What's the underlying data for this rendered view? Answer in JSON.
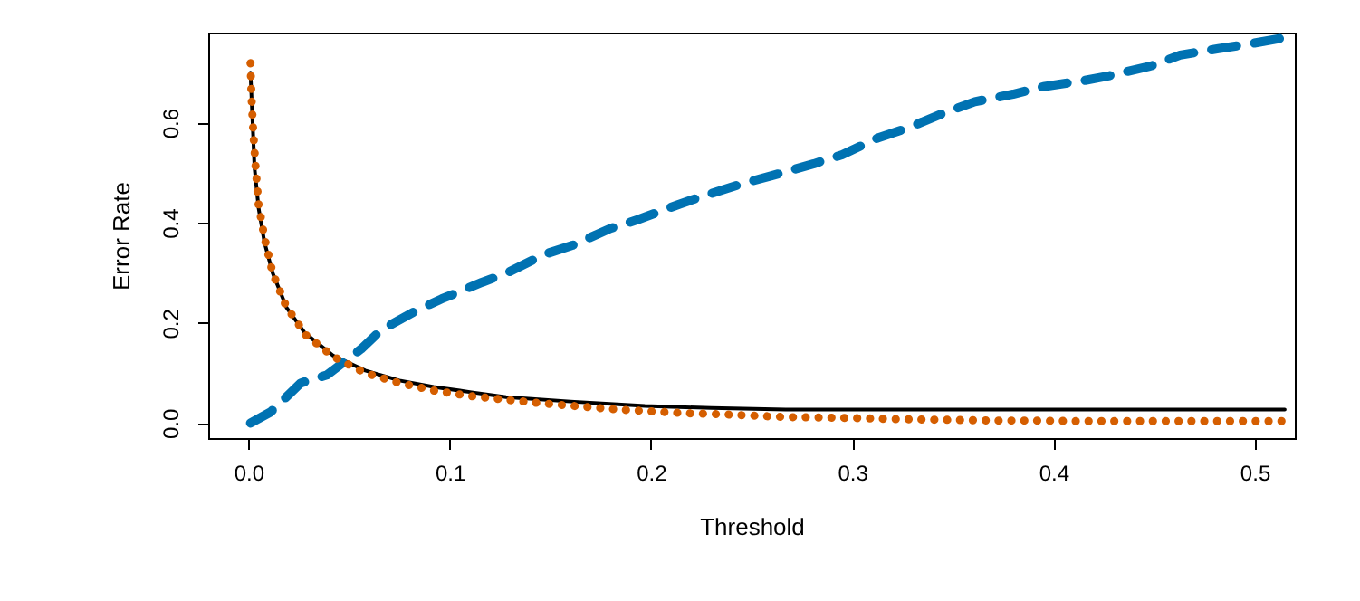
{
  "chart_data": {
    "type": "line",
    "xlabel": "Threshold",
    "ylabel": "Error Rate",
    "xlim": [
      -0.02,
      0.52
    ],
    "ylim": [
      -0.03,
      0.78
    ],
    "xticks": [
      {
        "value": 0,
        "label": "0.0"
      },
      0.1,
      0.2,
      0.3,
      0.4,
      0.5
    ],
    "yticks": [
      {
        "value": 0,
        "label": "0.0"
      },
      {
        "value": 0.2,
        "label": "0.2"
      },
      {
        "value": 0.4,
        "label": "0.4"
      },
      {
        "value": 0.6,
        "label": "0.6"
      }
    ],
    "grid": false,
    "series": [
      {
        "color": "#000000",
        "line_style": "solid",
        "x": [
          0.001,
          0.003,
          0.005,
          0.008,
          0.012,
          0.019,
          0.028,
          0.042,
          0.058,
          0.075,
          0.092,
          0.11,
          0.128,
          0.16,
          0.197,
          0.23,
          0.267,
          0.515
        ],
        "values": [
          0.7,
          0.51,
          0.43,
          0.36,
          0.3,
          0.23,
          0.18,
          0.135,
          0.105,
          0.085,
          0.072,
          0.062,
          0.052,
          0.043,
          0.034,
          0.03,
          0.027,
          0.027
        ]
      },
      {
        "color": "#0072b2",
        "line_style": "dashed",
        "x": [
          0.001,
          0.011,
          0.026,
          0.039,
          0.056,
          0.066,
          0.083,
          0.096,
          0.116,
          0.128,
          0.147,
          0.161,
          0.18,
          0.194,
          0.214,
          0.227,
          0.247,
          0.26,
          0.281,
          0.295,
          0.313,
          0.328,
          0.346,
          0.361,
          0.38,
          0.395,
          0.415,
          0.428,
          0.449,
          0.463,
          0.482,
          0.497,
          0.515
        ],
        "values": [
          0.0,
          0.022,
          0.08,
          0.096,
          0.148,
          0.186,
          0.224,
          0.248,
          0.281,
          0.299,
          0.337,
          0.355,
          0.389,
          0.407,
          0.437,
          0.455,
          0.48,
          0.494,
          0.518,
          0.536,
          0.57,
          0.59,
          0.62,
          0.642,
          0.657,
          0.672,
          0.684,
          0.694,
          0.714,
          0.735,
          0.748,
          0.757,
          0.77
        ]
      },
      {
        "color": "#d55e00",
        "line_style": "dotted",
        "x": [
          0.001,
          0.0015,
          0.0024,
          0.0036,
          0.005,
          0.008,
          0.012,
          0.0186,
          0.0285,
          0.042,
          0.058,
          0.075,
          0.092,
          0.11,
          0.127,
          0.144,
          0.162,
          0.18,
          0.197,
          0.215,
          0.232,
          0.25,
          0.267,
          0.285,
          0.302,
          0.32,
          0.338,
          0.355,
          0.373,
          0.391,
          0.408,
          0.426,
          0.444,
          0.461,
          0.479,
          0.496,
          0.514
        ],
        "values": [
          0.719,
          0.651,
          0.58,
          0.508,
          0.437,
          0.369,
          0.3,
          0.234,
          0.176,
          0.133,
          0.1,
          0.08,
          0.065,
          0.054,
          0.047,
          0.04,
          0.034,
          0.028,
          0.024,
          0.02,
          0.018,
          0.015,
          0.012,
          0.011,
          0.01,
          0.008,
          0.007,
          0.006,
          0.005,
          0.005,
          0.004,
          0.004,
          0.004,
          0.004,
          0.004,
          0.004,
          0.004
        ]
      }
    ]
  }
}
